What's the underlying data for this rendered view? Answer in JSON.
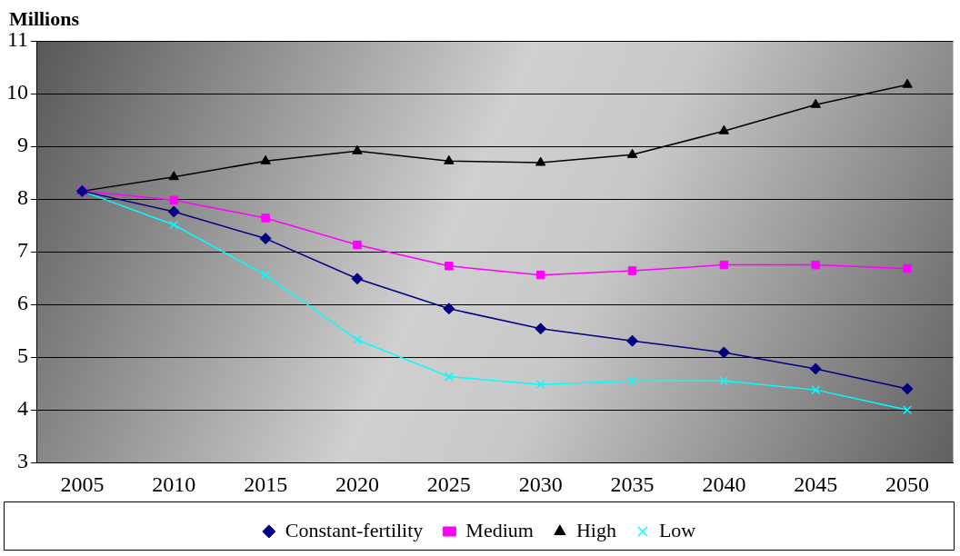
{
  "chart_data": {
    "type": "line",
    "ylabel": "Millions",
    "categories": [
      "2005",
      "2010",
      "2015",
      "2020",
      "2025",
      "2030",
      "2035",
      "2040",
      "2045",
      "2050"
    ],
    "series": [
      {
        "name": "Constant-fertility",
        "color": "#000080",
        "marker": "diamond",
        "values": [
          8.15,
          7.76,
          7.25,
          6.49,
          5.92,
          5.54,
          5.31,
          5.09,
          4.78,
          4.4
        ]
      },
      {
        "name": "Medium",
        "color": "#ff00ff",
        "marker": "square",
        "values": [
          8.15,
          7.98,
          7.64,
          7.13,
          6.73,
          6.56,
          6.64,
          6.75,
          6.75,
          6.68
        ]
      },
      {
        "name": "High",
        "color": "#000000",
        "marker": "triangle",
        "values": [
          8.15,
          8.42,
          8.72,
          8.91,
          8.72,
          8.69,
          8.84,
          9.29,
          9.79,
          10.17
        ]
      },
      {
        "name": "Low",
        "color": "#00ffff",
        "marker": "cross",
        "values": [
          8.15,
          7.51,
          6.56,
          5.33,
          4.63,
          4.48,
          4.55,
          4.55,
          4.38,
          4.0
        ]
      }
    ],
    "ylim": [
      3,
      11
    ],
    "yticks": [
      3,
      4,
      5,
      6,
      7,
      8,
      9,
      10,
      11
    ],
    "grid": "y",
    "legend": "bottom",
    "line_style": "solid"
  }
}
